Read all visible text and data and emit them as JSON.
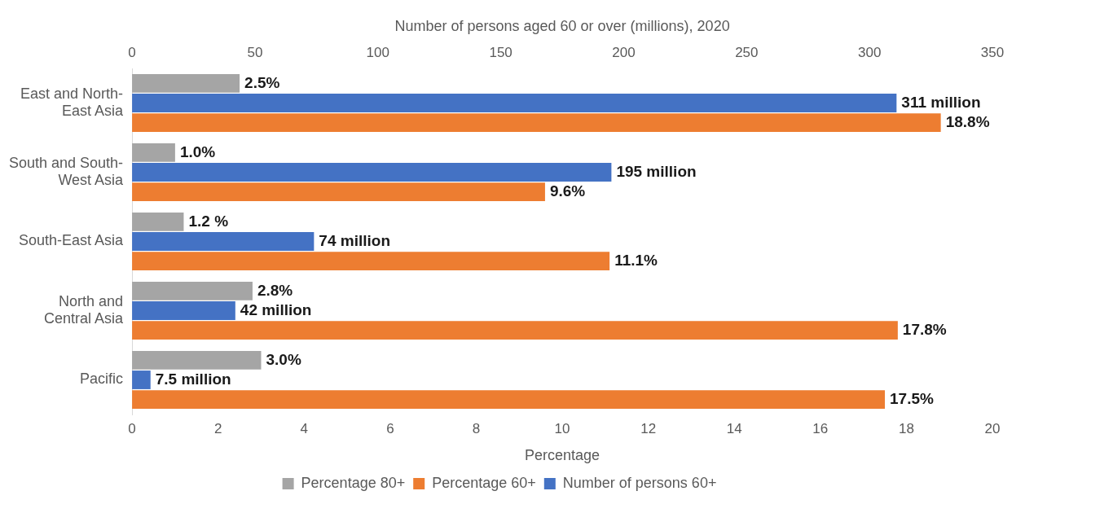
{
  "chart_data": {
    "type": "bar",
    "orientation": "horizontal",
    "xlabel": "Percentage",
    "x2label": "Number of persons aged 60 or over (millions), 2020",
    "categories": [
      "East and North-East Asia",
      "South and South-West Asia",
      "South-East Asia",
      "North and Central Asia",
      "Pacific"
    ],
    "series": [
      {
        "name": "Percentage 80+",
        "color": "#a5a5a5",
        "values": [
          2.5,
          1.0,
          1.2,
          2.8,
          3.0
        ],
        "value_labels": [
          "2.5%",
          "1.0%",
          "1.2 %",
          "2.8%",
          "3.0%"
        ]
      },
      {
        "name": "Number of persons 60+",
        "color": "#4472c4",
        "axis": "x2",
        "values": [
          311,
          195,
          74,
          42,
          7.5
        ],
        "value_labels": [
          "311 million",
          "195 million",
          "74 million",
          "42 million",
          "7.5 million"
        ]
      },
      {
        "name": "Percentage 60+",
        "color": "#ed7d31",
        "values": [
          18.8,
          9.6,
          11.1,
          17.8,
          17.5
        ],
        "value_labels": [
          "18.8%",
          "9.6%",
          "11.1%",
          "17.8%",
          "17.5%"
        ]
      }
    ],
    "xlim": [
      0,
      20
    ],
    "xticks": [
      0,
      2,
      4,
      6,
      8,
      10,
      12,
      14,
      16,
      18,
      20
    ],
    "x2lim": [
      0,
      350
    ],
    "x2ticks": [
      0,
      50,
      100,
      150,
      200,
      250,
      300,
      350
    ],
    "grid": false,
    "legend": "bottom"
  }
}
